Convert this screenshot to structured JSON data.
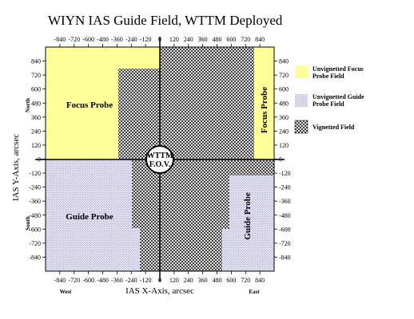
{
  "title": "WIYN IAS Guide Field, WTTM Deployed",
  "axes": {
    "xlabel": "IAS X-Axis, arcsec",
    "ylabel": "IAS Y-Axis, arcsec",
    "xlim": [
      -960,
      960
    ],
    "ylim": [
      -960,
      960
    ],
    "x_ticks": [
      -840,
      -720,
      -600,
      -480,
      -360,
      -240,
      -120,
      0,
      120,
      240,
      360,
      480,
      600,
      720,
      840
    ],
    "y_ticks": [
      840,
      720,
      600,
      480,
      360,
      240,
      120,
      0,
      -120,
      -240,
      -360,
      -480,
      -600,
      -720,
      -840
    ],
    "direction_labels": {
      "north": "North",
      "south": "South",
      "west": "West",
      "east": "East"
    }
  },
  "center_label": {
    "line1": "WTTM",
    "line2": "F.O.V."
  },
  "region_labels": {
    "focus_left": "Focus Probe",
    "focus_right": "Focus Probe",
    "guide_left": "Guide Probe",
    "guide_right": "Guide Probe"
  },
  "legend": [
    {
      "id": "focus",
      "line1": "Unvignetted Focus",
      "line2": "Probe Field"
    },
    {
      "id": "guide",
      "line1": "Unvignetted Guide",
      "line2": "Probe Field"
    },
    {
      "id": "vignetted",
      "line1": "Vignetted Field",
      "line2": ""
    }
  ],
  "colors": {
    "focus_fill": "#ffff99",
    "guide_fill": "#c9c9ef",
    "vignetted_pattern": "#000000",
    "axis": "#000000"
  }
}
